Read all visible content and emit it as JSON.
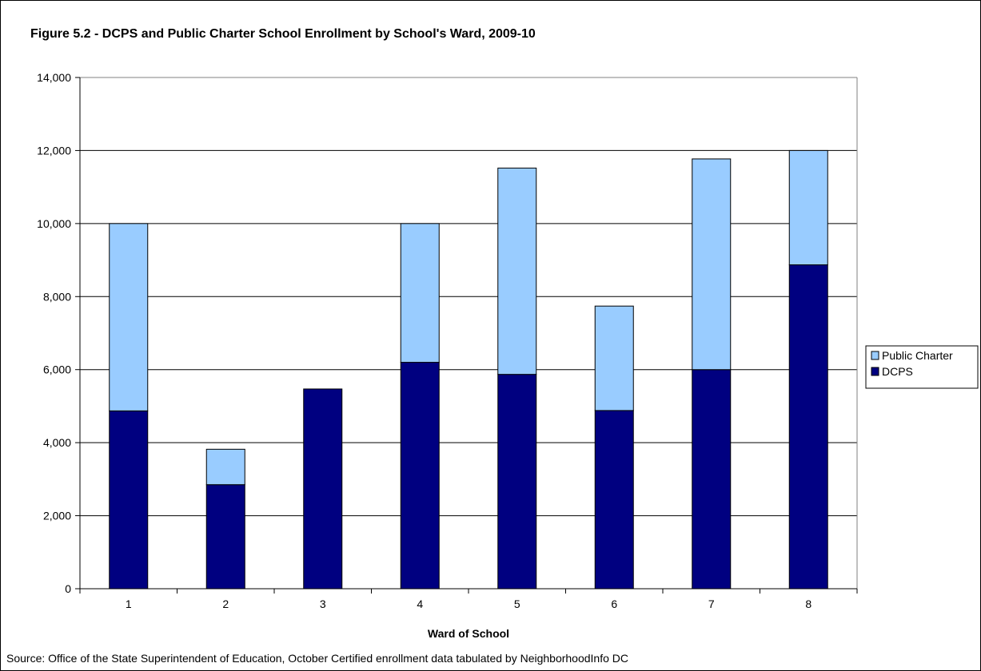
{
  "chart_data": {
    "type": "bar",
    "stacked": true,
    "title": "Figure 5.2 - DCPS and Public Charter School Enrollment by School's Ward, 2009-10",
    "xlabel": "Ward of School",
    "ylabel": "",
    "categories": [
      "1",
      "2",
      "3",
      "4",
      "5",
      "6",
      "7",
      "8"
    ],
    "series": [
      {
        "name": "DCPS",
        "color": "#000080",
        "values": [
          4870,
          2850,
          5470,
          6200,
          5870,
          4880,
          6000,
          8870
        ]
      },
      {
        "name": "Public Charter",
        "color": "#99CCFF",
        "values": [
          5130,
          970,
          0,
          3800,
          5650,
          2860,
          5770,
          3130
        ]
      }
    ],
    "ylim": [
      0,
      14000
    ],
    "yticks": [
      "0",
      "2,000",
      "4,000",
      "6,000",
      "8,000",
      "10,000",
      "12,000",
      "14,000"
    ],
    "ytick_values": [
      0,
      2000,
      4000,
      6000,
      8000,
      10000,
      12000,
      14000
    ],
    "grid": true,
    "legend": {
      "placement": "right",
      "entries": [
        "Public Charter",
        "DCPS"
      ]
    },
    "source": "Source: Office of the State Superintendent of Education, October Certified enrollment data tabulated by NeighborhoodInfo DC"
  }
}
